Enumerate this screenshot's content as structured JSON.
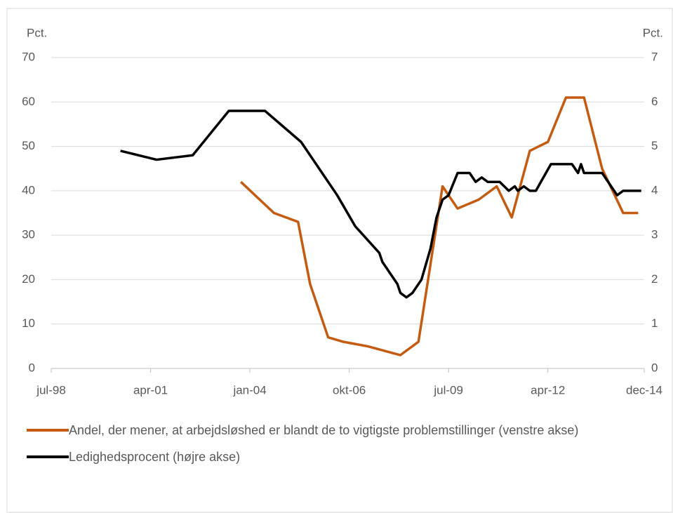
{
  "chart_data": {
    "type": "line",
    "y_label": "Pct.",
    "y2_label": "Pct.",
    "xlim": [
      "1998-07",
      "2014-12"
    ],
    "xticks": [
      {
        "value": "1998-07",
        "label": "jul-98"
      },
      {
        "value": "2001-04",
        "label": "apr-01"
      },
      {
        "value": "2004-01",
        "label": "jan-04"
      },
      {
        "value": "2006-10",
        "label": "okt-06"
      },
      {
        "value": "2009-07",
        "label": "jul-09"
      },
      {
        "value": "2012-04",
        "label": "apr-12"
      },
      {
        "value": "2014-12",
        "label": "dec-14"
      }
    ],
    "ylim": [
      0,
      70
    ],
    "yticks": [
      0,
      10,
      20,
      30,
      40,
      50,
      60,
      70
    ],
    "y2lim": [
      0,
      7
    ],
    "y2ticks": [
      0,
      1,
      2,
      3,
      4,
      5,
      6,
      7
    ],
    "grid": true,
    "legend": "bottom",
    "series": [
      {
        "name": "Andel, der mener, at arbejdsløshed er blandt de to vigtigste problemstillinger (venstre akse)",
        "color": "#c55a11",
        "axis": "y",
        "x": [
          "2003-10",
          "2004-09",
          "2005-05",
          "2005-09",
          "2006-03",
          "2006-08",
          "2007-04",
          "2008-03",
          "2008-09",
          "2009-05",
          "2009-10",
          "2010-05",
          "2010-11",
          "2011-04",
          "2011-10",
          "2012-04",
          "2012-10",
          "2013-04",
          "2013-10",
          "2014-05",
          "2014-10"
        ],
        "values": [
          42,
          35,
          33,
          19,
          7,
          6,
          5,
          3,
          6,
          41,
          36,
          38,
          41,
          34,
          49,
          51,
          61,
          61,
          45,
          35,
          35
        ]
      },
      {
        "name": "Ledighedsprocent (højre akse)",
        "color": "#000000",
        "axis": "y2",
        "x": [
          "2000-06",
          "2001-06",
          "2002-06",
          "2003-06",
          "2004-06",
          "2005-06",
          "2006-06",
          "2006-12",
          "2007-04",
          "2007-08",
          "2007-09",
          "2008-02",
          "2008-03",
          "2008-05",
          "2008-07",
          "2008-10",
          "2009-01",
          "2009-03",
          "2009-05",
          "2009-07",
          "2009-10",
          "2009-12",
          "2010-02",
          "2010-04",
          "2010-06",
          "2010-08",
          "2010-12",
          "2011-03",
          "2011-05",
          "2011-06",
          "2011-08",
          "2011-10",
          "2011-12",
          "2012-05",
          "2012-12",
          "2013-02",
          "2013-03",
          "2013-04",
          "2013-10",
          "2014-01",
          "2014-03",
          "2014-05",
          "2014-11"
        ],
        "values": [
          4.9,
          4.7,
          4.8,
          5.8,
          5.8,
          5.1,
          3.9,
          3.2,
          2.9,
          2.6,
          2.4,
          1.9,
          1.7,
          1.6,
          1.7,
          2.0,
          2.7,
          3.4,
          3.8,
          3.9,
          4.4,
          4.4,
          4.4,
          4.2,
          4.3,
          4.2,
          4.2,
          4.0,
          4.1,
          4.0,
          4.1,
          4.0,
          4.0,
          4.6,
          4.6,
          4.4,
          4.6,
          4.4,
          4.4,
          4.1,
          3.9,
          4.0,
          4.0
        ]
      }
    ]
  }
}
